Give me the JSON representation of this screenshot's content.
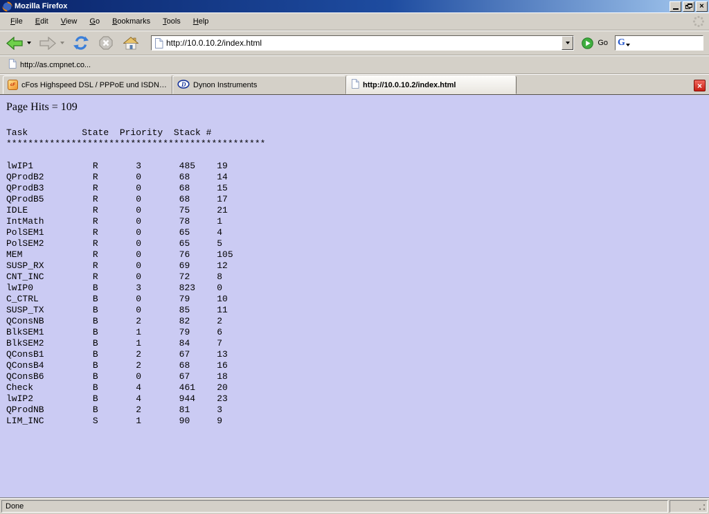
{
  "window": {
    "title": "Mozilla Firefox"
  },
  "menu_bar": {
    "items": [
      "File",
      "Edit",
      "View",
      "Go",
      "Bookmarks",
      "Tools",
      "Help"
    ]
  },
  "nav_toolbar": {
    "url_value": "http://10.0.10.2/index.html",
    "go_label": "Go",
    "search_value": ""
  },
  "bookmarks_bar": {
    "items": [
      {
        "label": "http://as.cmpnet.co...",
        "icon": "page-icon"
      }
    ]
  },
  "tab_bar": {
    "tabs": [
      {
        "label": "cFos Highspeed DSL / PPPoE und ISDN CAP...",
        "icon": "cfos-icon",
        "active": false
      },
      {
        "label": "Dynon Instruments",
        "icon": "dynon-icon",
        "active": false
      },
      {
        "label": "http://10.0.10.2/index.html",
        "icon": "page-icon",
        "active": true
      }
    ],
    "close_glyph": "×"
  },
  "page": {
    "hits_text": "Page Hits = 109",
    "table": {
      "columns": [
        "Task",
        "State",
        "Priority",
        "Stack",
        "#"
      ],
      "separator_char": "*",
      "separator_count": 48,
      "rows": [
        [
          "lwIP1",
          "R",
          "3",
          "485",
          "19"
        ],
        [
          "QProdB2",
          "R",
          "0",
          "68",
          "14"
        ],
        [
          "QProdB3",
          "R",
          "0",
          "68",
          "15"
        ],
        [
          "QProdB5",
          "R",
          "0",
          "68",
          "17"
        ],
        [
          "IDLE",
          "R",
          "0",
          "75",
          "21"
        ],
        [
          "IntMath",
          "R",
          "0",
          "78",
          "1"
        ],
        [
          "PolSEM1",
          "R",
          "0",
          "65",
          "4"
        ],
        [
          "PolSEM2",
          "R",
          "0",
          "65",
          "5"
        ],
        [
          "MEM",
          "R",
          "0",
          "76",
          "105"
        ],
        [
          "SUSP_RX",
          "R",
          "0",
          "69",
          "12"
        ],
        [
          "CNT_INC",
          "R",
          "0",
          "72",
          "8"
        ],
        [
          "lwIP0",
          "B",
          "3",
          "823",
          "0"
        ],
        [
          "C_CTRL",
          "B",
          "0",
          "79",
          "10"
        ],
        [
          "SUSP_TX",
          "B",
          "0",
          "85",
          "11"
        ],
        [
          "QConsNB",
          "B",
          "2",
          "82",
          "2"
        ],
        [
          "BlkSEM1",
          "B",
          "1",
          "79",
          "6"
        ],
        [
          "BlkSEM2",
          "B",
          "1",
          "84",
          "7"
        ],
        [
          "QConsB1",
          "B",
          "2",
          "67",
          "13"
        ],
        [
          "QConsB4",
          "B",
          "2",
          "68",
          "16"
        ],
        [
          "QConsB6",
          "B",
          "0",
          "67",
          "18"
        ],
        [
          "Check",
          "B",
          "4",
          "461",
          "20"
        ],
        [
          "lwIP2",
          "B",
          "4",
          "944",
          "23"
        ],
        [
          "QProdNB",
          "B",
          "2",
          "81",
          "3"
        ],
        [
          "LIM_INC",
          "S",
          "1",
          "90",
          "9"
        ]
      ]
    }
  },
  "status_bar": {
    "text": "Done"
  },
  "colors": {
    "page_bg": "#cbcbf3",
    "chrome_gray": "#d4d0c8",
    "title_gradient_start": "#0a246a",
    "title_gradient_end": "#a6caf0",
    "tab_close_red": "#d6281c",
    "go_green": "#2fae2f",
    "back_arrow_green": "#6ed04b"
  }
}
